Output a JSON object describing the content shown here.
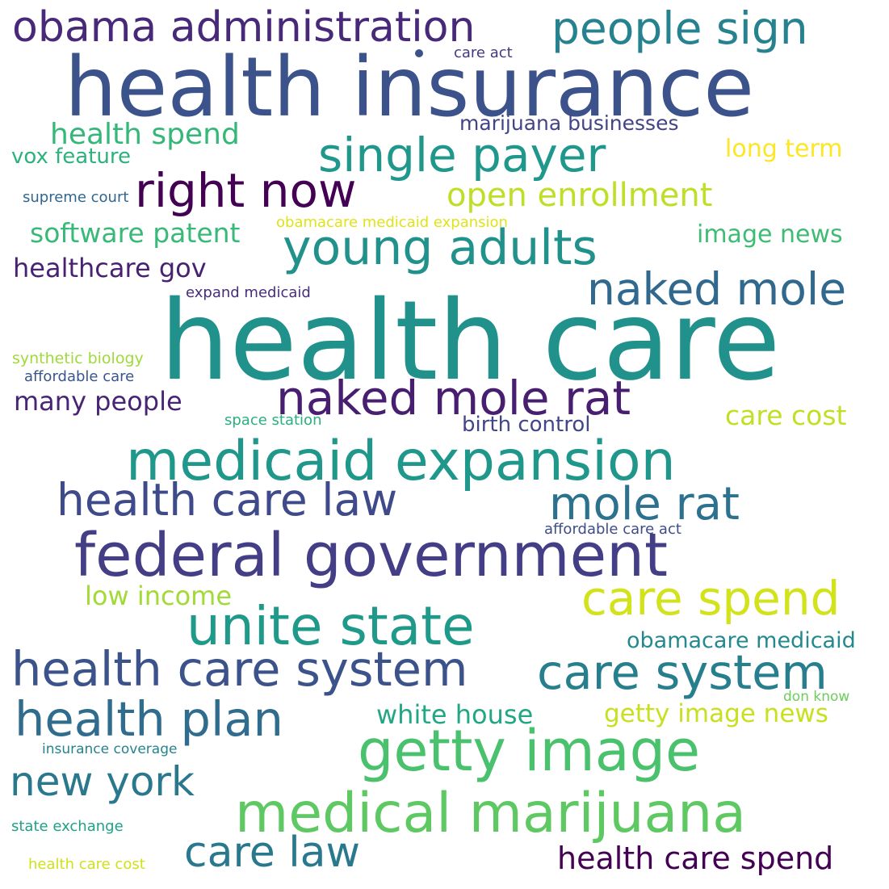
{
  "words": [
    {
      "text": "health care",
      "color": "#21918c"
    },
    {
      "text": "health insurance",
      "color": "#3b528b"
    },
    {
      "text": "federal government",
      "color": "#433e85"
    },
    {
      "text": "medicaid expansion",
      "color": "#1f978b"
    },
    {
      "text": "medical marijuana",
      "color": "#5ec962"
    },
    {
      "text": "getty image",
      "color": "#4ac16d"
    },
    {
      "text": "unite state",
      "color": "#1f9a8a"
    },
    {
      "text": "obama administration",
      "color": "#482878"
    },
    {
      "text": "people sign",
      "color": "#26828e"
    },
    {
      "text": "young adults",
      "color": "#21918c"
    },
    {
      "text": "single payer",
      "color": "#1f988b"
    },
    {
      "text": "right now",
      "color": "#440154"
    },
    {
      "text": "naked mole rat",
      "color": "#481f70"
    },
    {
      "text": "naked mole",
      "color": "#31688e"
    },
    {
      "text": "health care law",
      "color": "#3e4a89"
    },
    {
      "text": "mole rat",
      "color": "#2c728e"
    },
    {
      "text": "care spend",
      "color": "#d2e21b"
    },
    {
      "text": "care system",
      "color": "#277f8e"
    },
    {
      "text": "health care system",
      "color": "#3b528b"
    },
    {
      "text": "health plan",
      "color": "#2f6c8e"
    },
    {
      "text": "new york",
      "color": "#2a788e"
    },
    {
      "text": "care law",
      "color": "#2a788e"
    },
    {
      "text": "health care spend",
      "color": "#440154"
    },
    {
      "text": "open enrollment",
      "color": "#bddf26"
    },
    {
      "text": "health spend",
      "color": "#35b779"
    },
    {
      "text": "long term",
      "color": "#fde725"
    },
    {
      "text": "image news",
      "color": "#3fbc73"
    },
    {
      "text": "software patent",
      "color": "#38b977"
    },
    {
      "text": "healthcare gov",
      "color": "#482173"
    },
    {
      "text": "many people",
      "color": "#482475"
    },
    {
      "text": "care cost",
      "color": "#c0df25"
    },
    {
      "text": "low income",
      "color": "#a2da37"
    },
    {
      "text": "white house",
      "color": "#22a785"
    },
    {
      "text": "getty image news",
      "color": "#c8e020"
    },
    {
      "text": "obamacare medicaid",
      "color": "#23898e"
    },
    {
      "text": "marijuana businesses",
      "color": "#414487"
    },
    {
      "text": "vox feature",
      "color": "#2db27d"
    },
    {
      "text": "birth control",
      "color": "#404688"
    },
    {
      "text": "care act",
      "color": "#453882"
    },
    {
      "text": "supreme court",
      "color": "#31668e"
    },
    {
      "text": "obamacare medicaid expansion",
      "color": "#dfe318"
    },
    {
      "text": "expand medicaid",
      "color": "#472d7b"
    },
    {
      "text": "synthetic biology",
      "color": "#9fda3a"
    },
    {
      "text": "affordable care",
      "color": "#39568c"
    },
    {
      "text": "space station",
      "color": "#2ab07f"
    },
    {
      "text": "affordable care act",
      "color": "#3e4c8a"
    },
    {
      "text": "don know",
      "color": "#6ccd5a"
    },
    {
      "text": "insurance coverage",
      "color": "#25838e"
    },
    {
      "text": "state exchange",
      "color": "#1fa188"
    },
    {
      "text": "health care cost",
      "color": "#d0e11c"
    }
  ]
}
